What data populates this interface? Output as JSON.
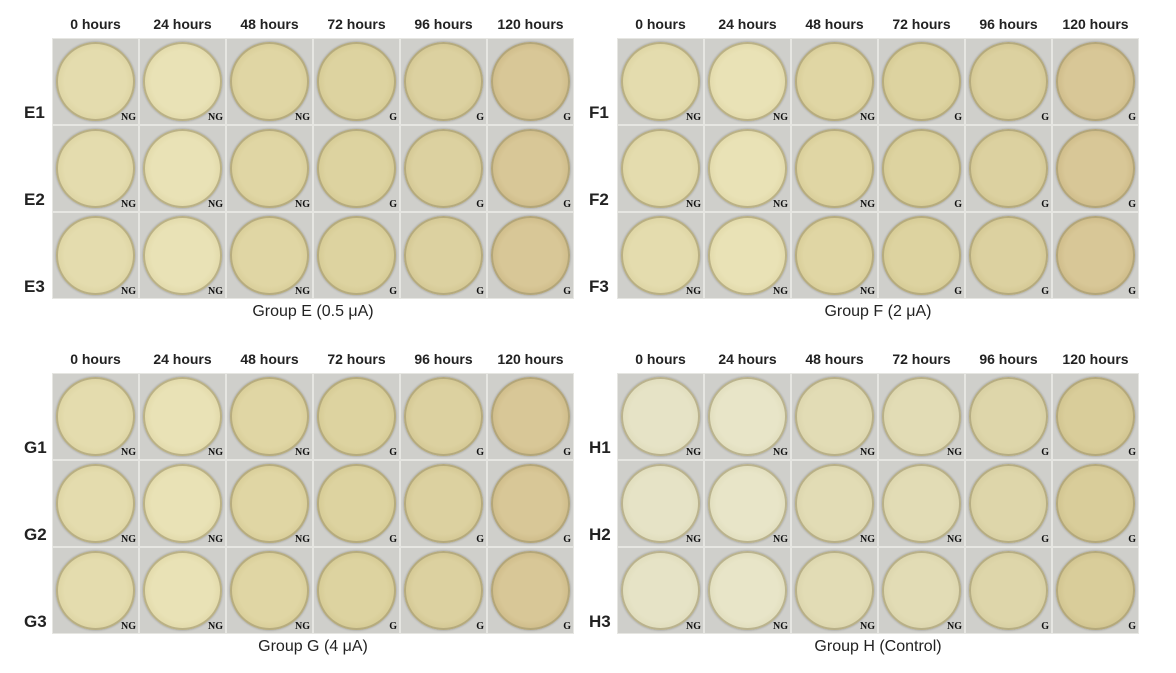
{
  "panels": [
    {
      "caption": "Group E (0.5 μA)",
      "time_labels": [
        "0 hours",
        "24 hours",
        "48 hours",
        "72 hours",
        "96 hours",
        "120 hours"
      ],
      "rows": [
        {
          "label": "E1",
          "plates": [
            "NG",
            "NG",
            "NG",
            "G",
            "G",
            "G"
          ]
        },
        {
          "label": "E2",
          "plates": [
            "NG",
            "NG",
            "NG",
            "G",
            "G",
            "G"
          ]
        },
        {
          "label": "E3",
          "plates": [
            "NG",
            "NG",
            "NG",
            "G",
            "G",
            "G"
          ]
        }
      ]
    },
    {
      "caption": "Group F (2 μA)",
      "time_labels": [
        "0 hours",
        "24 hours",
        "48 hours",
        "72 hours",
        "96 hours",
        "120 hours"
      ],
      "rows": [
        {
          "label": "F1",
          "plates": [
            "NG",
            "NG",
            "NG",
            "G",
            "G",
            "G"
          ]
        },
        {
          "label": "F2",
          "plates": [
            "NG",
            "NG",
            "NG",
            "G",
            "G",
            "G"
          ]
        },
        {
          "label": "F3",
          "plates": [
            "NG",
            "NG",
            "NG",
            "G",
            "G",
            "G"
          ]
        }
      ]
    },
    {
      "caption": "Group G (4 μA)",
      "time_labels": [
        "0 hours",
        "24 hours",
        "48 hours",
        "72 hours",
        "96 hours",
        "120 hours"
      ],
      "rows": [
        {
          "label": "G1",
          "plates": [
            "NG",
            "NG",
            "NG",
            "G",
            "G",
            "G"
          ]
        },
        {
          "label": "G2",
          "plates": [
            "NG",
            "NG",
            "NG",
            "G",
            "G",
            "G"
          ]
        },
        {
          "label": "G3",
          "plates": [
            "NG",
            "NG",
            "NG",
            "G",
            "G",
            "G"
          ]
        }
      ]
    },
    {
      "caption": "Group H (Control)",
      "time_labels": [
        "0 hours",
        "24 hours",
        "48 hours",
        "72 hours",
        "96 hours",
        "120 hours"
      ],
      "rows": [
        {
          "label": "H1",
          "plates": [
            "NG",
            "NG",
            "NG",
            "NG",
            "G",
            "G"
          ]
        },
        {
          "label": "H2",
          "plates": [
            "NG",
            "NG",
            "NG",
            "NG",
            "G",
            "G"
          ]
        },
        {
          "label": "H3",
          "plates": [
            "NG",
            "NG",
            "NG",
            "NG",
            "G",
            "G"
          ]
        }
      ]
    }
  ]
}
